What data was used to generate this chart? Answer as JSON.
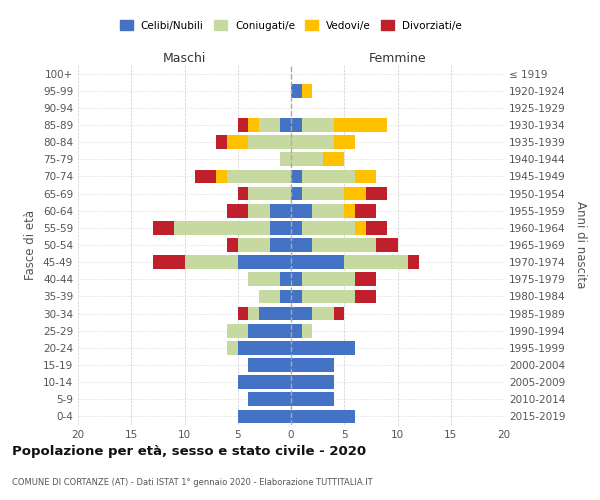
{
  "age_groups": [
    "100+",
    "95-99",
    "90-94",
    "85-89",
    "80-84",
    "75-79",
    "70-74",
    "65-69",
    "60-64",
    "55-59",
    "50-54",
    "45-49",
    "40-44",
    "35-39",
    "30-34",
    "25-29",
    "20-24",
    "15-19",
    "10-14",
    "5-9",
    "0-4"
  ],
  "birth_years": [
    "≤ 1919",
    "1920-1924",
    "1925-1929",
    "1930-1934",
    "1935-1939",
    "1940-1944",
    "1945-1949",
    "1950-1954",
    "1955-1959",
    "1960-1964",
    "1965-1969",
    "1970-1974",
    "1975-1979",
    "1980-1984",
    "1985-1989",
    "1990-1994",
    "1995-1999",
    "2000-2004",
    "2005-2009",
    "2010-2014",
    "2015-2019"
  ],
  "males": {
    "celibi": [
      0,
      0,
      0,
      1,
      0,
      0,
      0,
      0,
      2,
      2,
      2,
      5,
      1,
      1,
      3,
      4,
      5,
      4,
      5,
      4,
      5
    ],
    "coniugati": [
      0,
      0,
      0,
      2,
      4,
      1,
      6,
      4,
      2,
      9,
      3,
      5,
      3,
      2,
      1,
      2,
      1,
      0,
      0,
      0,
      0
    ],
    "vedovi": [
      0,
      0,
      0,
      1,
      2,
      0,
      1,
      0,
      0,
      0,
      0,
      0,
      0,
      0,
      0,
      0,
      0,
      0,
      0,
      0,
      0
    ],
    "divorziati": [
      0,
      0,
      0,
      1,
      1,
      0,
      2,
      1,
      2,
      2,
      1,
      3,
      0,
      0,
      1,
      0,
      0,
      0,
      0,
      0,
      0
    ]
  },
  "females": {
    "nubili": [
      0,
      1,
      0,
      1,
      0,
      0,
      1,
      1,
      2,
      1,
      2,
      5,
      1,
      1,
      2,
      1,
      6,
      4,
      4,
      4,
      6
    ],
    "coniugate": [
      0,
      0,
      0,
      3,
      4,
      3,
      5,
      4,
      3,
      5,
      6,
      6,
      5,
      5,
      2,
      1,
      0,
      0,
      0,
      0,
      0
    ],
    "vedove": [
      0,
      1,
      0,
      5,
      2,
      2,
      2,
      2,
      1,
      1,
      0,
      0,
      0,
      0,
      0,
      0,
      0,
      0,
      0,
      0,
      0
    ],
    "divorziate": [
      0,
      0,
      0,
      0,
      0,
      0,
      0,
      2,
      2,
      2,
      2,
      1,
      2,
      2,
      1,
      0,
      0,
      0,
      0,
      0,
      0
    ]
  },
  "color_celibi": "#4472c4",
  "color_coniugati": "#c5d9a0",
  "color_vedovi": "#ffc000",
  "color_divorziati": "#c0202c",
  "xlim": 20,
  "title": "Popolazione per età, sesso e stato civile - 2020",
  "subtitle": "COMUNE DI CORTANZE (AT) - Dati ISTAT 1° gennaio 2020 - Elaborazione TUTTITALIA.IT",
  "ylabel_left": "Fasce di età",
  "ylabel_right": "Anni di nascita",
  "xlabel_maschi": "Maschi",
  "xlabel_femmine": "Femmine",
  "legend_labels": [
    "Celibi/Nubili",
    "Coniugati/e",
    "Vedovi/e",
    "Divorziati/e"
  ]
}
